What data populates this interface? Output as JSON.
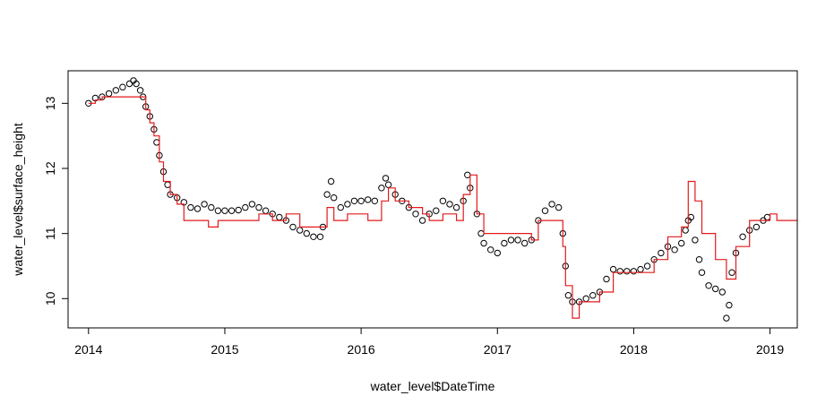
{
  "chart_data": {
    "type": "scatter",
    "title": "",
    "xlabel": "water_level$DateTime",
    "ylabel": "water_level$surface_height",
    "xlim": [
      2013.85,
      2019.2
    ],
    "ylim": [
      9.55,
      13.5
    ],
    "x_ticks": [
      2014,
      2015,
      2016,
      2017,
      2018,
      2019
    ],
    "x_tick_labels": [
      "2014",
      "2015",
      "2016",
      "2017",
      "2018",
      "2019"
    ],
    "y_ticks": [
      10,
      11,
      12,
      13
    ],
    "y_tick_labels": [
      "10",
      "11",
      "12",
      "13"
    ],
    "grid": false,
    "legend": "none",
    "series": [
      {
        "kind": "points",
        "color": "#000000",
        "points": [
          [
            2014.0,
            13.0
          ],
          [
            2014.05,
            13.08
          ],
          [
            2014.1,
            13.1
          ],
          [
            2014.15,
            13.15
          ],
          [
            2014.2,
            13.2
          ],
          [
            2014.25,
            13.25
          ],
          [
            2014.3,
            13.3
          ],
          [
            2014.33,
            13.35
          ],
          [
            2014.35,
            13.3
          ],
          [
            2014.38,
            13.2
          ],
          [
            2014.4,
            13.1
          ],
          [
            2014.42,
            12.95
          ],
          [
            2014.45,
            12.8
          ],
          [
            2014.48,
            12.6
          ],
          [
            2014.5,
            12.4
          ],
          [
            2014.52,
            12.2
          ],
          [
            2014.55,
            11.95
          ],
          [
            2014.58,
            11.75
          ],
          [
            2014.6,
            11.6
          ],
          [
            2014.65,
            11.55
          ],
          [
            2014.7,
            11.48
          ],
          [
            2014.75,
            11.4
          ],
          [
            2014.8,
            11.38
          ],
          [
            2014.85,
            11.45
          ],
          [
            2014.9,
            11.4
          ],
          [
            2014.95,
            11.35
          ],
          [
            2015.0,
            11.35
          ],
          [
            2015.05,
            11.35
          ],
          [
            2015.1,
            11.36
          ],
          [
            2015.15,
            11.4
          ],
          [
            2015.2,
            11.45
          ],
          [
            2015.25,
            11.4
          ],
          [
            2015.3,
            11.35
          ],
          [
            2015.35,
            11.3
          ],
          [
            2015.4,
            11.25
          ],
          [
            2015.45,
            11.2
          ],
          [
            2015.5,
            11.1
          ],
          [
            2015.55,
            11.05
          ],
          [
            2015.6,
            11.0
          ],
          [
            2015.65,
            10.95
          ],
          [
            2015.7,
            10.95
          ],
          [
            2015.72,
            11.1
          ],
          [
            2015.75,
            11.6
          ],
          [
            2015.78,
            11.8
          ],
          [
            2015.8,
            11.55
          ],
          [
            2015.85,
            11.4
          ],
          [
            2015.9,
            11.45
          ],
          [
            2015.95,
            11.5
          ],
          [
            2016.0,
            11.5
          ],
          [
            2016.05,
            11.52
          ],
          [
            2016.1,
            11.5
          ],
          [
            2016.15,
            11.7
          ],
          [
            2016.18,
            11.85
          ],
          [
            2016.2,
            11.75
          ],
          [
            2016.25,
            11.6
          ],
          [
            2016.3,
            11.5
          ],
          [
            2016.35,
            11.4
          ],
          [
            2016.4,
            11.3
          ],
          [
            2016.45,
            11.2
          ],
          [
            2016.5,
            11.3
          ],
          [
            2016.55,
            11.35
          ],
          [
            2016.6,
            11.5
          ],
          [
            2016.65,
            11.45
          ],
          [
            2016.7,
            11.4
          ],
          [
            2016.75,
            11.5
          ],
          [
            2016.78,
            11.9
          ],
          [
            2016.8,
            11.7
          ],
          [
            2016.85,
            11.3
          ],
          [
            2016.88,
            11.0
          ],
          [
            2016.9,
            10.85
          ],
          [
            2016.95,
            10.75
          ],
          [
            2017.0,
            10.7
          ],
          [
            2017.05,
            10.85
          ],
          [
            2017.1,
            10.9
          ],
          [
            2017.15,
            10.9
          ],
          [
            2017.2,
            10.85
          ],
          [
            2017.25,
            10.9
          ],
          [
            2017.3,
            11.2
          ],
          [
            2017.35,
            11.35
          ],
          [
            2017.4,
            11.45
          ],
          [
            2017.45,
            11.4
          ],
          [
            2017.48,
            11.0
          ],
          [
            2017.5,
            10.5
          ],
          [
            2017.52,
            10.05
          ],
          [
            2017.55,
            9.95
          ],
          [
            2017.6,
            9.95
          ],
          [
            2017.65,
            10.0
          ],
          [
            2017.7,
            10.05
          ],
          [
            2017.75,
            10.1
          ],
          [
            2017.8,
            10.3
          ],
          [
            2017.85,
            10.45
          ],
          [
            2017.9,
            10.42
          ],
          [
            2017.95,
            10.42
          ],
          [
            2018.0,
            10.42
          ],
          [
            2018.05,
            10.45
          ],
          [
            2018.1,
            10.5
          ],
          [
            2018.15,
            10.6
          ],
          [
            2018.2,
            10.7
          ],
          [
            2018.25,
            10.8
          ],
          [
            2018.3,
            10.75
          ],
          [
            2018.35,
            10.85
          ],
          [
            2018.38,
            11.05
          ],
          [
            2018.4,
            11.2
          ],
          [
            2018.42,
            11.25
          ],
          [
            2018.45,
            10.9
          ],
          [
            2018.48,
            10.6
          ],
          [
            2018.5,
            10.4
          ],
          [
            2018.55,
            10.2
          ],
          [
            2018.6,
            10.15
          ],
          [
            2018.65,
            10.1
          ],
          [
            2018.68,
            9.7
          ],
          [
            2018.7,
            9.9
          ],
          [
            2018.72,
            10.4
          ],
          [
            2018.75,
            10.7
          ],
          [
            2018.8,
            10.95
          ],
          [
            2018.85,
            11.05
          ],
          [
            2018.9,
            11.1
          ],
          [
            2018.95,
            11.2
          ],
          [
            2018.98,
            11.25
          ]
        ]
      },
      {
        "kind": "step-line",
        "color": "#e31a1c",
        "points": [
          [
            2014.0,
            13.0
          ],
          [
            2014.05,
            13.05
          ],
          [
            2014.1,
            13.1
          ],
          [
            2014.4,
            13.1
          ],
          [
            2014.42,
            12.9
          ],
          [
            2014.45,
            12.7
          ],
          [
            2014.48,
            12.5
          ],
          [
            2014.52,
            12.1
          ],
          [
            2014.55,
            11.8
          ],
          [
            2014.6,
            11.6
          ],
          [
            2014.65,
            11.45
          ],
          [
            2014.7,
            11.2
          ],
          [
            2014.85,
            11.2
          ],
          [
            2014.88,
            11.1
          ],
          [
            2014.95,
            11.2
          ],
          [
            2015.2,
            11.2
          ],
          [
            2015.25,
            11.3
          ],
          [
            2015.35,
            11.2
          ],
          [
            2015.45,
            11.3
          ],
          [
            2015.55,
            11.1
          ],
          [
            2015.7,
            11.1
          ],
          [
            2015.75,
            11.4
          ],
          [
            2015.8,
            11.2
          ],
          [
            2015.9,
            11.3
          ],
          [
            2016.05,
            11.2
          ],
          [
            2016.15,
            11.5
          ],
          [
            2016.2,
            11.7
          ],
          [
            2016.25,
            11.5
          ],
          [
            2016.35,
            11.4
          ],
          [
            2016.45,
            11.3
          ],
          [
            2016.5,
            11.2
          ],
          [
            2016.6,
            11.3
          ],
          [
            2016.7,
            11.2
          ],
          [
            2016.75,
            11.6
          ],
          [
            2016.8,
            11.9
          ],
          [
            2016.85,
            11.3
          ],
          [
            2016.9,
            11.0
          ],
          [
            2017.05,
            11.0
          ],
          [
            2017.25,
            10.9
          ],
          [
            2017.3,
            11.2
          ],
          [
            2017.45,
            11.2
          ],
          [
            2017.48,
            10.8
          ],
          [
            2017.5,
            10.2
          ],
          [
            2017.55,
            9.7
          ],
          [
            2017.6,
            9.95
          ],
          [
            2017.75,
            10.1
          ],
          [
            2017.85,
            10.4
          ],
          [
            2018.05,
            10.4
          ],
          [
            2018.15,
            10.6
          ],
          [
            2018.25,
            10.95
          ],
          [
            2018.35,
            11.1
          ],
          [
            2018.4,
            11.8
          ],
          [
            2018.45,
            11.5
          ],
          [
            2018.5,
            11.0
          ],
          [
            2018.6,
            10.6
          ],
          [
            2018.68,
            10.3
          ],
          [
            2018.75,
            10.8
          ],
          [
            2018.85,
            11.2
          ],
          [
            2019.0,
            11.3
          ],
          [
            2019.05,
            11.2
          ],
          [
            2019.2,
            11.2
          ]
        ]
      }
    ]
  }
}
